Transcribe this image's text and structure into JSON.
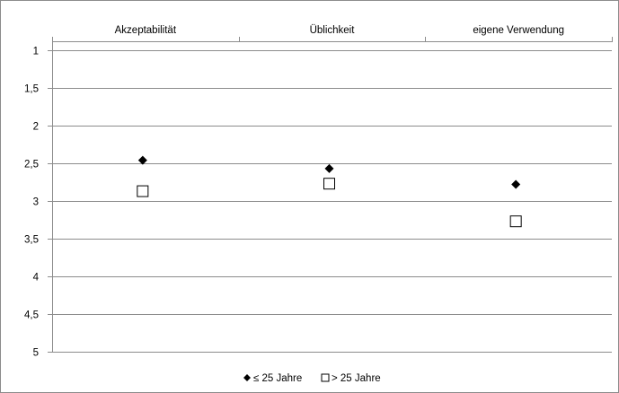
{
  "chart_data": {
    "type": "scatter",
    "categories": [
      "Akzeptabilität",
      "Üblichkeit",
      "eigene Verwendung"
    ],
    "y_ticks": [
      "1",
      "1,5",
      "2",
      "2,5",
      "3",
      "3,5",
      "4",
      "4,5",
      "5"
    ],
    "y_tick_values": [
      1,
      1.5,
      2,
      2.5,
      3,
      3.5,
      4,
      4.5,
      5
    ],
    "ylim": [
      1,
      5
    ],
    "y_reversed": true,
    "x_axis_position": "top",
    "grid": true,
    "legend_position": "bottom",
    "series": [
      {
        "name": "≤ 25 Jahre",
        "marker": "filled-diamond",
        "color": "#000000",
        "values": [
          2.46,
          2.57,
          2.78
        ]
      },
      {
        "name": "> 25 Jahre",
        "marker": "open-square",
        "color": "#000000",
        "values": [
          2.87,
          2.77,
          3.27
        ]
      }
    ]
  }
}
